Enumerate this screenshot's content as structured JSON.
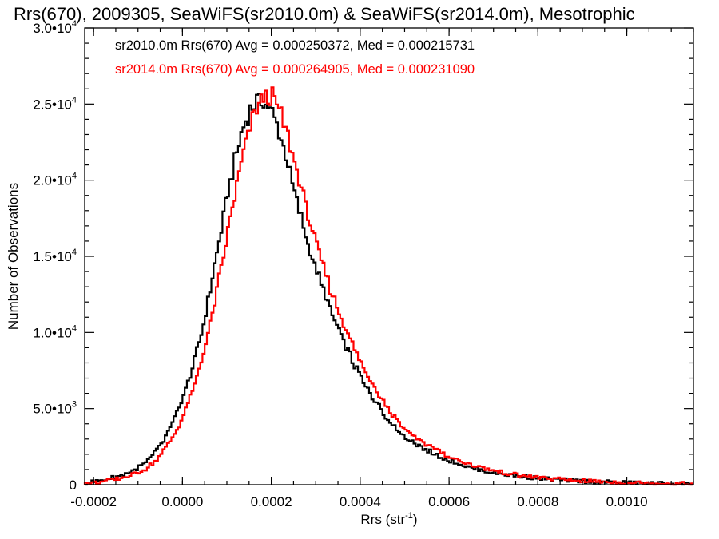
{
  "chart_data": {
    "type": "histogram-step",
    "title": "Rrs(670), 2009305, SeaWiFS(sr2010.0m) & SeaWiFS(sr2014.0m), Mesotrophic",
    "xlabel_main": "Rrs (str",
    "xlabel_sup": "-1",
    "xlabel_close": ")",
    "ylabel": "Number of Observations",
    "xlim": [
      -0.00022,
      0.00115
    ],
    "ylim": [
      0,
      30000
    ],
    "x_ticks": [
      {
        "value": -0.0002,
        "label": "-0.0002"
      },
      {
        "value": 0.0,
        "label": "0.0000"
      },
      {
        "value": 0.0002,
        "label": "0.0002"
      },
      {
        "value": 0.0004,
        "label": "0.0004"
      },
      {
        "value": 0.0006,
        "label": "0.0006"
      },
      {
        "value": 0.0008,
        "label": "0.0008"
      },
      {
        "value": 0.001,
        "label": "0.0010"
      }
    ],
    "y_ticks": [
      {
        "value": 0,
        "mant": "0",
        "exp": ""
      },
      {
        "value": 5000,
        "mant": "5.0•10",
        "exp": "3"
      },
      {
        "value": 10000,
        "mant": "1.0•10",
        "exp": "4"
      },
      {
        "value": 15000,
        "mant": "1.5•10",
        "exp": "4"
      },
      {
        "value": 20000,
        "mant": "2.0•10",
        "exp": "4"
      },
      {
        "value": 25000,
        "mant": "2.5•10",
        "exp": "4"
      },
      {
        "value": 30000,
        "mant": "3.0•10",
        "exp": "4"
      }
    ],
    "annotations": [
      {
        "text": "sr2010.0m Rrs(670) Avg = 0.000250372, Med = 0.000215731",
        "color": "#000000"
      },
      {
        "text": "sr2014.0m Rrs(670) Avg = 0.000264905, Med = 0.000231090",
        "color": "#ff0000"
      }
    ],
    "bin_width": 5e-06,
    "series": [
      {
        "color": "#000000",
        "x": [
          -0.00022,
          -0.0002,
          -0.00018,
          -0.00016,
          -0.00014,
          -0.00012,
          -0.0001,
          -8e-05,
          -6e-05,
          -4e-05,
          -2e-05,
          0.0,
          2e-05,
          4e-05,
          6e-05,
          8e-05,
          0.0001,
          0.00012,
          0.00014,
          0.00016,
          0.00018,
          0.0002,
          0.00022,
          0.00024,
          0.00026,
          0.00028,
          0.0003,
          0.00032,
          0.00034,
          0.00036,
          0.00038,
          0.0004,
          0.00042,
          0.00044,
          0.00046,
          0.00048,
          0.0005,
          0.00055,
          0.0006,
          0.00065,
          0.0007,
          0.00075,
          0.0008,
          0.00085,
          0.0009,
          0.00095,
          0.001,
          0.00105,
          0.0011,
          0.00115
        ],
        "y": [
          100,
          200,
          300,
          450,
          600,
          800,
          1100,
          1500,
          2200,
          3000,
          4200,
          5600,
          7300,
          9600,
          12400,
          15600,
          18800,
          21600,
          23800,
          25000,
          25300,
          24600,
          23000,
          20700,
          18300,
          16100,
          14200,
          12500,
          11000,
          9600,
          8300,
          7100,
          6100,
          5200,
          4400,
          3750,
          3200,
          2250,
          1600,
          1100,
          800,
          580,
          430,
          320,
          240,
          180,
          140,
          100,
          80,
          60
        ]
      },
      {
        "color": "#ff0000",
        "x": [
          -0.00022,
          -0.0002,
          -0.00018,
          -0.00016,
          -0.00014,
          -0.00012,
          -0.0001,
          -8e-05,
          -6e-05,
          -4e-05,
          -2e-05,
          0.0,
          2e-05,
          4e-05,
          6e-05,
          8e-05,
          0.0001,
          0.00012,
          0.00014,
          0.00016,
          0.00018,
          0.0002,
          0.00022,
          0.00024,
          0.00026,
          0.00028,
          0.0003,
          0.00032,
          0.00034,
          0.00036,
          0.00038,
          0.0004,
          0.00042,
          0.00044,
          0.00046,
          0.00048,
          0.0005,
          0.00055,
          0.0006,
          0.00065,
          0.0007,
          0.00075,
          0.0008,
          0.00085,
          0.0009,
          0.00095,
          0.001,
          0.00105,
          0.0011,
          0.00115
        ],
        "y": [
          60,
          120,
          200,
          300,
          420,
          580,
          800,
          1100,
          1600,
          2300,
          3200,
          4400,
          5900,
          7800,
          10200,
          13100,
          16200,
          19300,
          22100,
          24200,
          25400,
          25500,
          24500,
          22600,
          20300,
          18000,
          15900,
          14000,
          12300,
          10800,
          9400,
          8100,
          7000,
          6000,
          5100,
          4350,
          3700,
          2600,
          1850,
          1300,
          920,
          660,
          480,
          350,
          260,
          190,
          145,
          110,
          85,
          65
        ]
      }
    ]
  }
}
